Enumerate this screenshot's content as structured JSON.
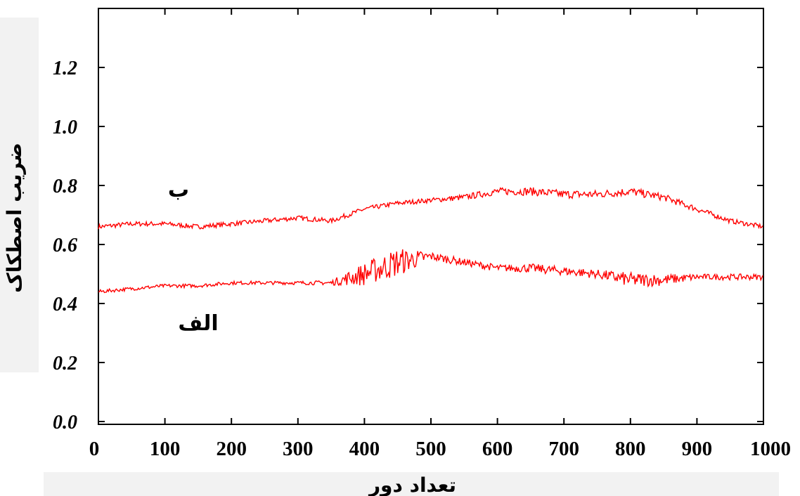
{
  "chart_data": {
    "type": "line",
    "xlabel": "تعداد دور",
    "ylabel": "ضریب اصطکاک",
    "xlim": [
      0,
      1000
    ],
    "ylim": [
      0.0,
      1.4
    ],
    "x_ticks": [
      "0",
      "100",
      "200",
      "300",
      "400",
      "500",
      "600",
      "700",
      "800",
      "900",
      "1000"
    ],
    "y_ticks": [
      "0.0",
      "0.2",
      "0.4",
      "0.6",
      "0.8",
      "1.0",
      "1.2"
    ],
    "grid": false,
    "line_color": "#ff0000",
    "series": [
      {
        "name": "ب",
        "x": [
          0,
          50,
          100,
          150,
          200,
          250,
          300,
          350,
          400,
          450,
          500,
          550,
          600,
          650,
          700,
          750,
          800,
          850,
          900,
          950,
          1000
        ],
        "y": [
          0.66,
          0.67,
          0.67,
          0.66,
          0.67,
          0.68,
          0.69,
          0.68,
          0.72,
          0.74,
          0.75,
          0.76,
          0.78,
          0.78,
          0.77,
          0.77,
          0.78,
          0.76,
          0.72,
          0.68,
          0.66
        ],
        "noise": [
          0.008,
          0.008,
          0.008,
          0.008,
          0.008,
          0.008,
          0.008,
          0.008,
          0.008,
          0.008,
          0.008,
          0.01,
          0.012,
          0.014,
          0.014,
          0.014,
          0.014,
          0.012,
          0.01,
          0.008,
          0.008
        ]
      },
      {
        "name": "الف",
        "x": [
          0,
          50,
          100,
          150,
          200,
          250,
          300,
          350,
          400,
          450,
          500,
          550,
          600,
          650,
          700,
          750,
          800,
          850,
          900,
          950,
          1000
        ],
        "y": [
          0.44,
          0.45,
          0.46,
          0.46,
          0.47,
          0.47,
          0.47,
          0.47,
          0.5,
          0.54,
          0.56,
          0.54,
          0.52,
          0.52,
          0.51,
          0.5,
          0.48,
          0.48,
          0.49,
          0.49,
          0.49
        ],
        "noise": [
          0.006,
          0.006,
          0.006,
          0.006,
          0.006,
          0.006,
          0.006,
          0.008,
          0.04,
          0.05,
          0.015,
          0.012,
          0.012,
          0.015,
          0.015,
          0.015,
          0.025,
          0.02,
          0.01,
          0.01,
          0.01
        ]
      }
    ]
  }
}
